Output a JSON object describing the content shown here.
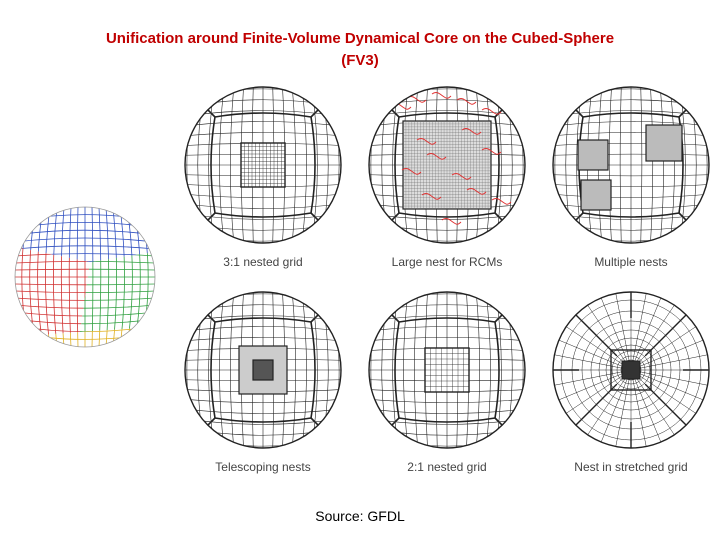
{
  "title": {
    "line1": "Unification around Finite-Volume Dynamical Core on the Cubed-Sphere",
    "line2": "(FV3)"
  },
  "panels": [
    {
      "caption": "3:1 nested grid",
      "nest": "single",
      "nest_level": 3
    },
    {
      "caption": "Large nest for RCMs",
      "nest": "large",
      "nest_level": 3
    },
    {
      "caption": "Multiple nests",
      "nest": "multiple",
      "nest_level": 3
    },
    {
      "caption": "Telescoping nests",
      "nest": "telescoping",
      "nest_level": 2
    },
    {
      "caption": "2:1 nested grid",
      "nest": "single",
      "nest_level": 2
    },
    {
      "caption": "Nest in stretched grid",
      "nest": "stretched",
      "nest_level": 2
    }
  ],
  "colors": {
    "title": "#c00000",
    "grid_line": "#222222",
    "nest_red": "#e03030",
    "cube_blue": "#3050c0",
    "cube_green": "#30a040",
    "cube_red": "#d03030",
    "cube_yellow": "#e0b020"
  },
  "source": "Source: GFDL"
}
